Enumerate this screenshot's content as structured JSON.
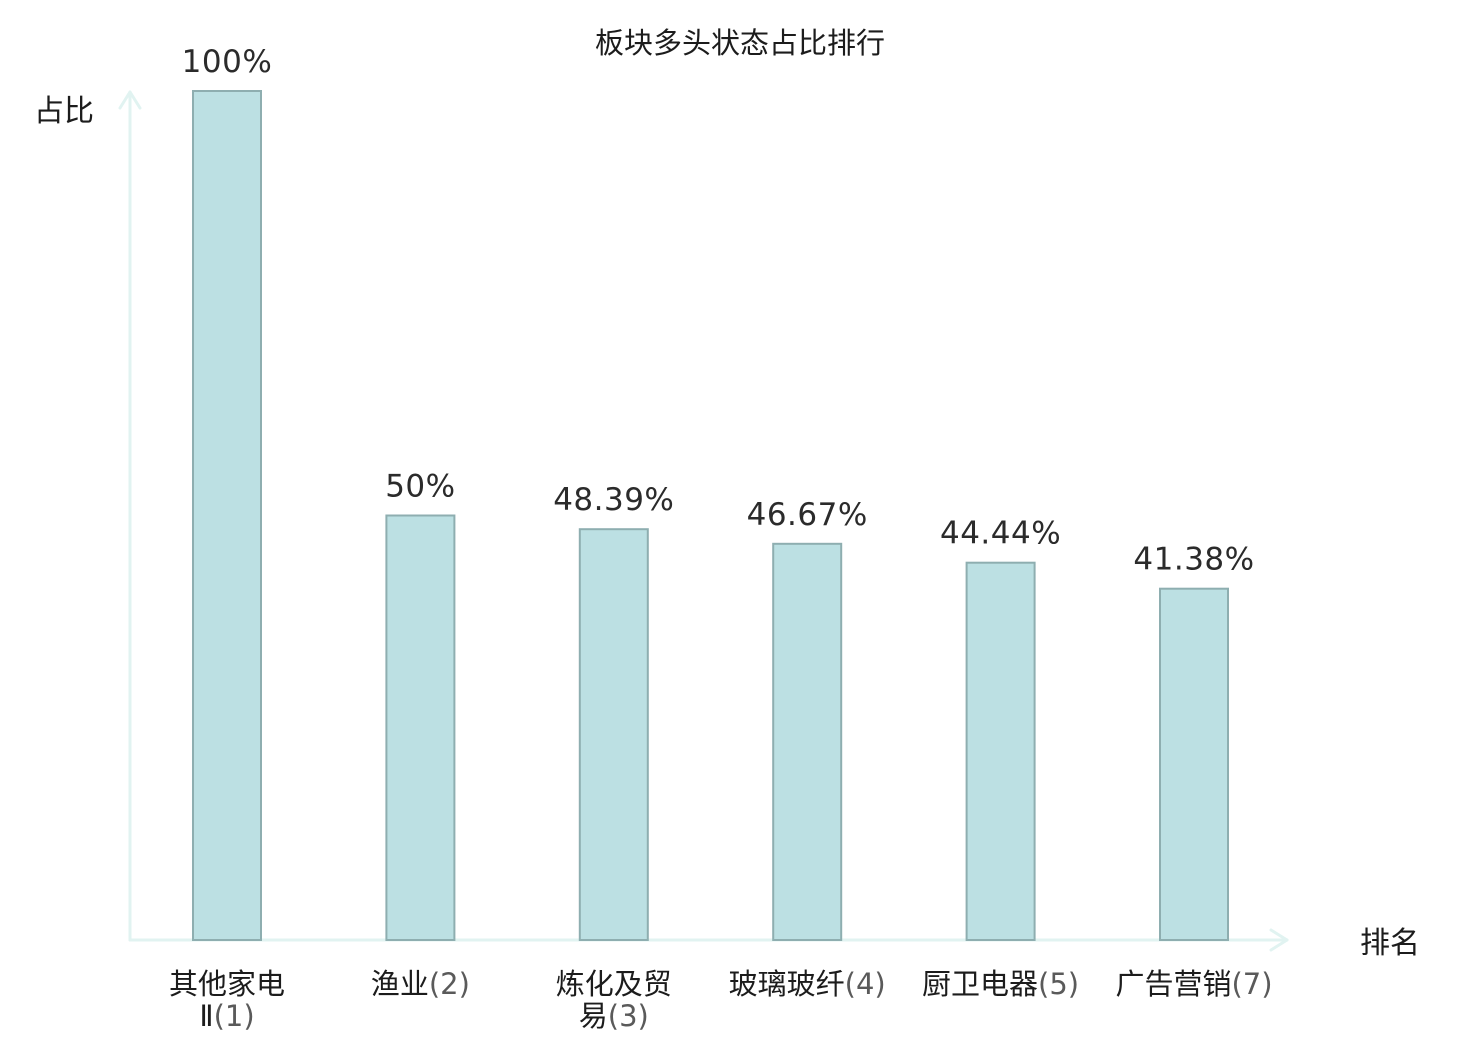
{
  "chart_data": {
    "type": "bar",
    "title": "板块多头状态占比排行",
    "ylabel": "占比",
    "xlabel": "排名",
    "ylim": [
      0,
      100
    ],
    "grid": false,
    "categories": [
      "其他家电Ⅱ(1)",
      "渔业(2)",
      "炼化及贸易(3)",
      "玻璃玻纤(4)",
      "厨卫电器(5)",
      "广告营销(7)"
    ],
    "category_parts": [
      {
        "name": "其他家电Ⅱ",
        "rank": "(1)"
      },
      {
        "name": "渔业",
        "rank": "(2)"
      },
      {
        "name": "炼化及贸易",
        "rank": "(3)"
      },
      {
        "name": "玻璃玻纤",
        "rank": "(4)"
      },
      {
        "name": "厨卫电器",
        "rank": "(5)"
      },
      {
        "name": "广告营销",
        "rank": "(7)"
      }
    ],
    "values": [
      100,
      50,
      48.39,
      46.67,
      44.44,
      41.38
    ],
    "value_labels": [
      "100%",
      "50%",
      "48.39%",
      "46.67%",
      "44.44%",
      "41.38%"
    ],
    "highlight_index": 5
  },
  "colors": {
    "bar_fill": "#bce0e3",
    "bar_stroke": "#8eaeb0",
    "axis": "#e1f3f1",
    "text": "#1c1c1c",
    "rank_text": "#5a5a5a",
    "highlight": "#e8131a"
  }
}
